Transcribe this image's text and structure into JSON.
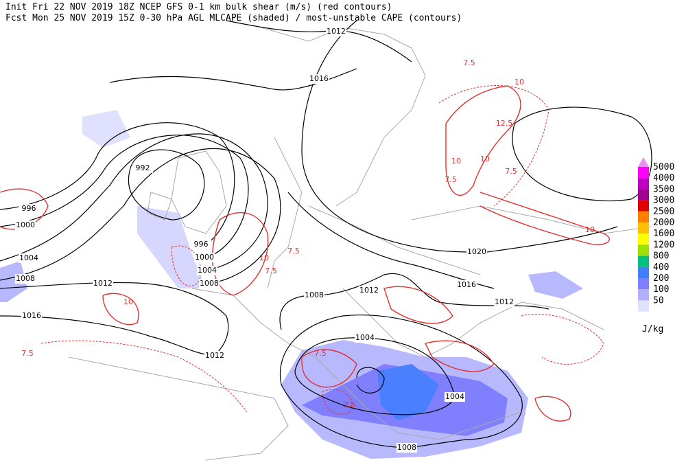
{
  "header": {
    "line1": "Init  Fri 22 NOV 2019 18Z   NCEP GFS 0-1 km bulk shear (m/s) (red contours)",
    "line2": "Fcst Mon 25 NOV 2019 15Z  0-30 hPa AGL MLCAPE (shaded) / most-unstable CAPE (contours)"
  },
  "legend": {
    "unit": "J/kg",
    "items": [
      {
        "value": 5000,
        "color": "#ff00ff"
      },
      {
        "value": 4000,
        "color": "#c000c0"
      },
      {
        "value": 3500,
        "color": "#a00090"
      },
      {
        "value": 3000,
        "color": "#e00000"
      },
      {
        "value": 2500,
        "color": "#ff8000"
      },
      {
        "value": 2000,
        "color": "#ffc000"
      },
      {
        "value": 1600,
        "color": "#ffff00"
      },
      {
        "value": 1200,
        "color": "#a0e000"
      },
      {
        "value": 800,
        "color": "#00c080"
      },
      {
        "value": 400,
        "color": "#4080ff"
      },
      {
        "value": 200,
        "color": "#8080ff"
      },
      {
        "value": 100,
        "color": "#b0b0ff"
      },
      {
        "value": 50,
        "color": "#e0e0ff"
      }
    ],
    "top_color": "#e890f0"
  },
  "isobar_labels": [
    1012,
    1016,
    992,
    996,
    1000,
    996,
    1000,
    1004,
    1004,
    1008,
    1008,
    1012,
    1016,
    1012,
    1008,
    1012,
    1004,
    1004,
    1008,
    1020,
    1016,
    1012
  ],
  "shear_labels": [
    "7.5",
    "10",
    "12.5",
    "10",
    "10",
    "7.5",
    "7.5",
    "10",
    "10",
    "7.5",
    "7.5",
    "7.5",
    "10",
    "7.5",
    "7.5"
  ]
}
